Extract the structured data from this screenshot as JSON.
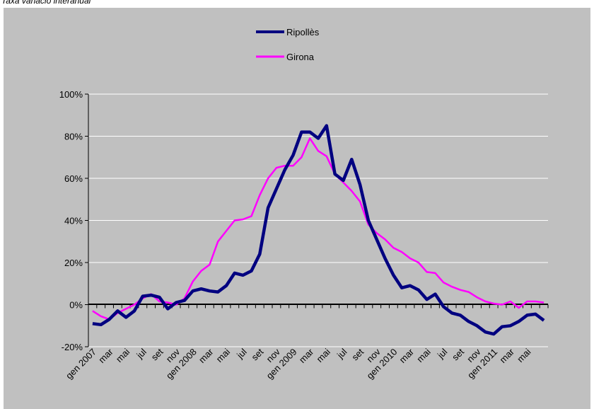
{
  "subtitle": "Taxa variació interanual",
  "chart_data": {
    "type": "line",
    "title": "",
    "xlabel": "",
    "ylabel": "",
    "ylim": [
      -20,
      100
    ],
    "y_ticks": [
      "100%",
      "80%",
      "60%",
      "40%",
      "20%",
      "0%",
      "-20%"
    ],
    "y_tick_values": [
      100,
      80,
      60,
      40,
      20,
      0,
      -20
    ],
    "x_tick_labels": [
      "gen 2007",
      "mar",
      "mai",
      "jul",
      "set",
      "nov",
      "gen 2008",
      "mar",
      "mai",
      "jul",
      "set",
      "nov",
      "gen 2009",
      "mar",
      "mai",
      "jul",
      "set",
      "nov",
      "gen 2010",
      "mar",
      "mai",
      "jul",
      "set",
      "nov",
      "gen 2011",
      "mar",
      "mai"
    ],
    "x_tick_index": [
      0,
      2,
      4,
      6,
      8,
      10,
      12,
      14,
      16,
      18,
      20,
      22,
      24,
      26,
      28,
      30,
      32,
      34,
      36,
      38,
      40,
      42,
      44,
      46,
      48,
      50,
      52
    ],
    "n_points": 55,
    "grid": "horizontal",
    "legend_position": "top-center",
    "plot_background": "#c0c0c0",
    "series": [
      {
        "name": "Ripollès",
        "color": "#000080",
        "values": [
          -9,
          -9.5,
          -7,
          -3,
          -6,
          -3,
          4,
          4.5,
          3.5,
          -2,
          1,
          2,
          6.5,
          7.5,
          6.5,
          6,
          9,
          15,
          14,
          16,
          24,
          46,
          55,
          64,
          71,
          82,
          82,
          79,
          85,
          62,
          59,
          69,
          57,
          40,
          31,
          22,
          14,
          8,
          9,
          7,
          2.5,
          5,
          -1,
          -4,
          -5,
          -8,
          -10,
          -13,
          -14,
          -10.5,
          -10,
          -8,
          -5,
          -4.5,
          -7.5
        ]
      },
      {
        "name": "Girona",
        "color": "#ff00ff",
        "values": [
          -3,
          -5.5,
          -7,
          -4,
          -2,
          0,
          3,
          5,
          1.5,
          1,
          0,
          3,
          11,
          16,
          19,
          30,
          35,
          40,
          40.5,
          42,
          52,
          60,
          65,
          66,
          66,
          70,
          79,
          73,
          70.5,
          62,
          58,
          54,
          49,
          38,
          34,
          31,
          27,
          25,
          22,
          20,
          15.5,
          15,
          10.5,
          8.5,
          7,
          6,
          3.5,
          1.5,
          0.5,
          0,
          1.5,
          -1.5,
          1.5,
          1.5,
          1
        ]
      }
    ]
  }
}
